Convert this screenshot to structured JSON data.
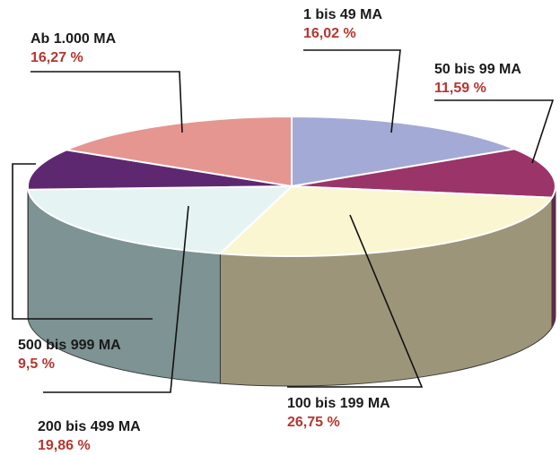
{
  "chart_data": {
    "type": "pie",
    "title": "",
    "slices": [
      {
        "label": "1 bis 49 MA",
        "value_label": "16,02 %",
        "value": 16.02,
        "color": "#a4aad6",
        "side_color": "#787ba3"
      },
      {
        "label": "50 bis 99 MA",
        "value_label": "11,59 %",
        "value": 11.59,
        "color": "#9b3468",
        "side_color": "#6c2449"
      },
      {
        "label": "100 bis 199 MA",
        "value_label": "26,75 %",
        "value": 26.75,
        "color": "#fbf6d2",
        "side_color": "#9d957a"
      },
      {
        "label": "200 bis 499 MA",
        "value_label": "19,86 %",
        "value": 19.86,
        "color": "#e6f3f3",
        "side_color": "#7e9393"
      },
      {
        "label": "500 bis 999 MA",
        "value_label": "9,5 %",
        "value": 9.5,
        "color": "#5d2870",
        "side_color": "#40194e"
      },
      {
        "label": "Ab 1.000 MA",
        "value_label": "16,27 %",
        "value": 16.27,
        "color": "#e59690",
        "side_color": "#a86a66"
      }
    ],
    "legend": "none",
    "style": "3d-exploded-pie"
  }
}
